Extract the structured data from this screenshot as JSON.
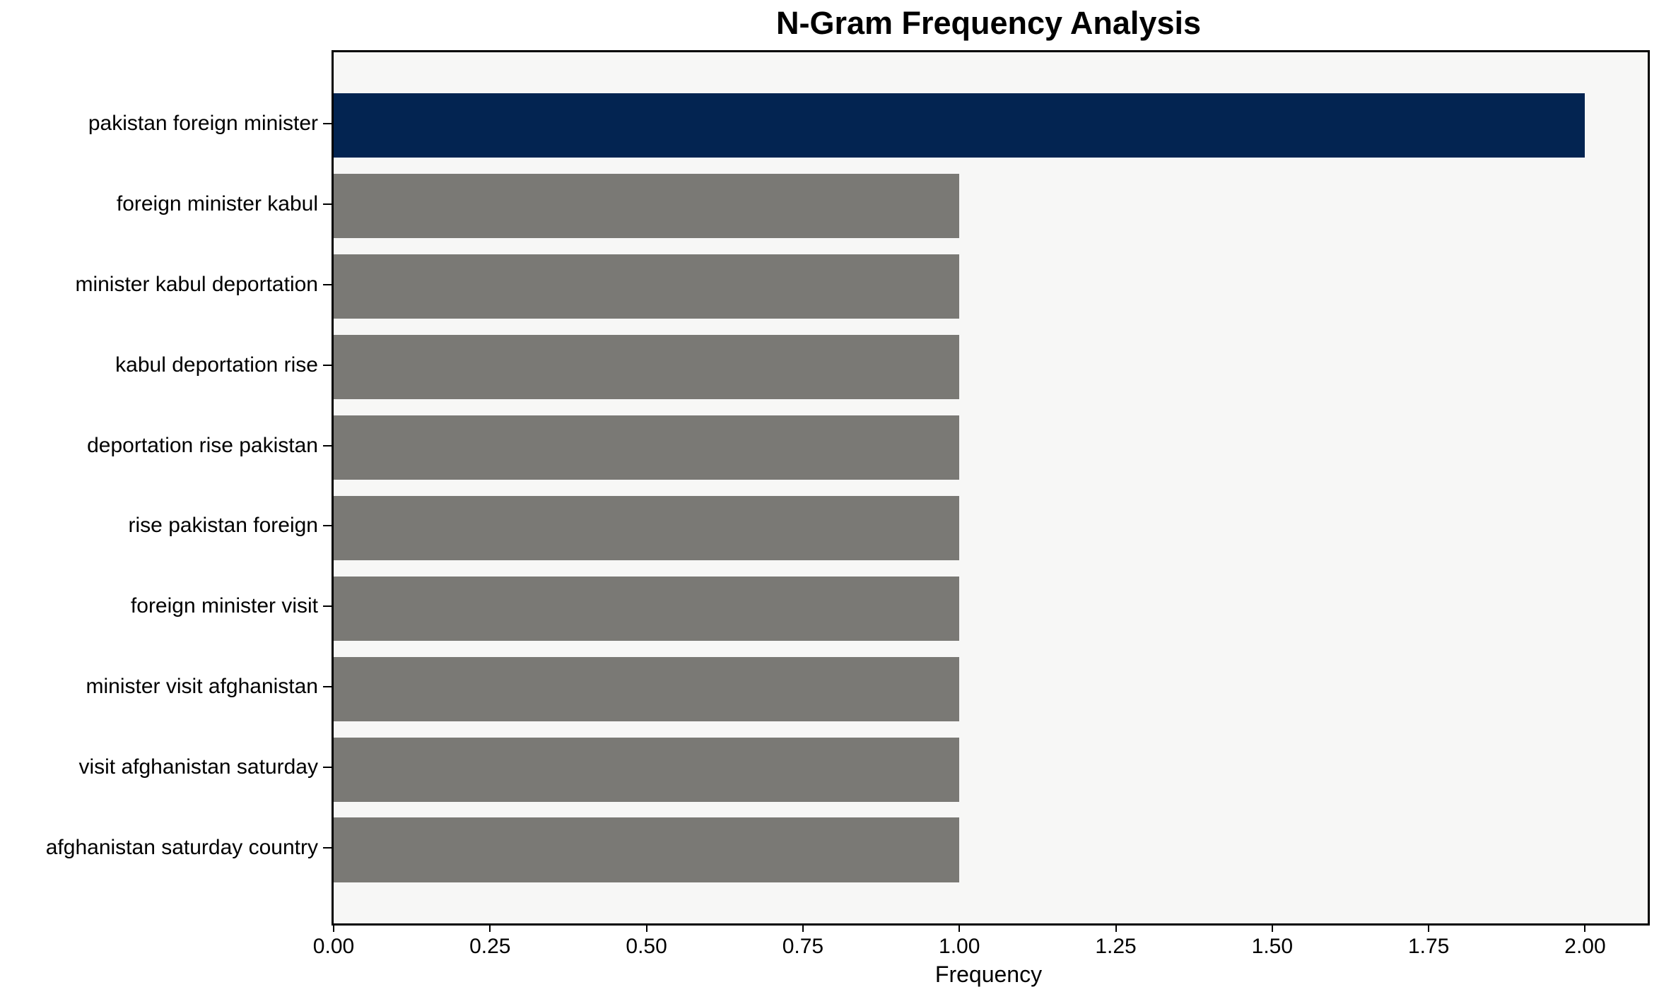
{
  "chart_data": {
    "type": "bar",
    "orientation": "horizontal",
    "title": "N-Gram Frequency Analysis",
    "xlabel": "Frequency",
    "ylabel": "",
    "categories": [
      "pakistan foreign minister",
      "foreign minister kabul",
      "minister kabul deportation",
      "kabul deportation rise",
      "deportation rise pakistan",
      "rise pakistan foreign",
      "foreign minister visit",
      "minister visit afghanistan",
      "visit afghanistan saturday",
      "afghanistan saturday country"
    ],
    "values": [
      2,
      1,
      1,
      1,
      1,
      1,
      1,
      1,
      1,
      1
    ],
    "xlim": [
      0,
      2.1
    ],
    "xticks": [
      0.0,
      0.25,
      0.5,
      0.75,
      1.0,
      1.25,
      1.5,
      1.75,
      2.0
    ],
    "xtick_labels": [
      "0.00",
      "0.25",
      "0.50",
      "0.75",
      "1.00",
      "1.25",
      "1.50",
      "1.75",
      "2.00"
    ],
    "grid": false,
    "legend": null,
    "colors": {
      "highlight_bar": "#032451",
      "default_bar": "#7a7975",
      "highlight_index": 0,
      "plot_background": "#f7f7f6",
      "figure_background": "#ffffff",
      "spine": "#000000",
      "text": "#000000"
    }
  }
}
